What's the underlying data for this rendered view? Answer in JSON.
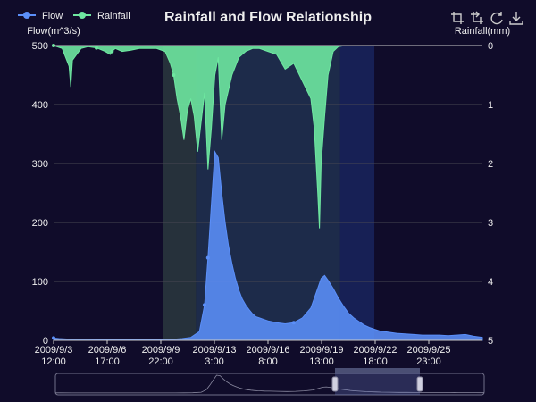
{
  "chart_data": {
    "type": "area",
    "title": "Rainfall and Flow Relationship",
    "legend": {
      "placement": "top-left",
      "items": [
        {
          "name": "Flow",
          "color": "#5b8ff9"
        },
        {
          "name": "Rainfall",
          "color": "#6ee7a0"
        }
      ]
    },
    "x_tick_labels": [
      [
        "2009/9/3",
        "12:00"
      ],
      [
        "2009/9/6",
        "17:00"
      ],
      [
        "2009/9/9",
        "22:00"
      ],
      [
        "2009/9/13",
        "3:00"
      ],
      [
        "2009/9/16",
        "8:00"
      ],
      [
        "2009/9/19",
        "13:00"
      ],
      [
        "2009/9/22",
        "18:00"
      ],
      [
        "2009/9/25",
        "23:00"
      ]
    ],
    "y_left": {
      "name": "Flow(m^3/s)",
      "min": 0,
      "max": 500,
      "ticks": [
        0,
        100,
        200,
        300,
        400,
        500
      ]
    },
    "y_right": {
      "name": "Rainfall(mm)",
      "min": 0,
      "max": 5,
      "inverse": true,
      "ticks": [
        0,
        1,
        2,
        3,
        4,
        5
      ]
    },
    "x_range_days": [
      0,
      25
    ],
    "highlight_bands": [
      {
        "from": 6.4,
        "to": 8.3,
        "color": "rgba(56,80,72,0.55)"
      },
      {
        "from": 8.3,
        "to": 16.7,
        "color": "rgba(40,70,100,0.55)"
      },
      {
        "from": 16.7,
        "to": 18.7,
        "color": "rgba(30,50,120,0.55)"
      }
    ],
    "series": [
      {
        "name": "Flow",
        "color": "#5b8ff9",
        "x_days": [
          0.0,
          0.3,
          1.0,
          2.0,
          3.0,
          4.0,
          5.0,
          6.0,
          6.5,
          7.0,
          7.5,
          8.0,
          8.5,
          8.8,
          9.0,
          9.2,
          9.4,
          9.6,
          9.8,
          10.0,
          10.2,
          10.4,
          10.6,
          10.8,
          11.0,
          11.2,
          11.4,
          11.6,
          11.8,
          12.0,
          12.2,
          12.5,
          13.0,
          13.5,
          14.0,
          14.5,
          15.0,
          15.3,
          15.6,
          15.8,
          16.0,
          16.3,
          16.6,
          16.9,
          17.2,
          17.5,
          17.8,
          18.1,
          18.4,
          18.7,
          19.0,
          19.5,
          20.0,
          20.5,
          21.0,
          21.5,
          22.0,
          22.5,
          23.0,
          23.5,
          24.0,
          24.5,
          25.0
        ],
        "values": [
          4,
          3,
          2,
          2,
          1,
          1,
          1,
          1,
          2,
          2,
          3,
          5,
          15,
          60,
          140,
          230,
          320,
          310,
          250,
          200,
          160,
          130,
          105,
          85,
          70,
          60,
          52,
          45,
          40,
          38,
          36,
          33,
          30,
          28,
          30,
          38,
          55,
          80,
          105,
          110,
          102,
          88,
          72,
          58,
          46,
          38,
          32,
          26,
          22,
          19,
          16,
          14,
          12,
          11,
          10,
          9,
          9,
          9,
          8,
          9,
          10,
          7,
          5
        ]
      },
      {
        "name": "Rainfall",
        "color": "#6ee7a0",
        "x_days": [
          0.0,
          0.5,
          0.9,
          1.0,
          1.1,
          1.6,
          2.0,
          2.5,
          3.0,
          3.3,
          3.4,
          3.6,
          4.0,
          4.5,
          5.0,
          5.5,
          6.0,
          6.5,
          6.8,
          7.0,
          7.2,
          7.4,
          7.6,
          7.8,
          8.0,
          8.2,
          8.4,
          8.6,
          8.8,
          9.0,
          9.2,
          9.4,
          9.6,
          9.8,
          10.0,
          10.4,
          10.8,
          11.2,
          11.6,
          12.0,
          12.5,
          13.0,
          13.5,
          14.0,
          14.5,
          15.0,
          15.2,
          15.4,
          15.5,
          15.6,
          15.8,
          16.0,
          16.3,
          16.6,
          17.0,
          17.5,
          18.0,
          19.0,
          20.0,
          21.0,
          22.0,
          23.0,
          24.0,
          25.0
        ],
        "values": [
          0.0,
          0.05,
          0.35,
          0.7,
          0.25,
          0.05,
          0.02,
          0.04,
          0.1,
          0.15,
          0.1,
          0.05,
          0.1,
          0.08,
          0.05,
          0.05,
          0.05,
          0.1,
          0.3,
          0.5,
          0.9,
          1.2,
          1.6,
          1.1,
          0.9,
          1.2,
          1.8,
          1.3,
          0.8,
          2.1,
          1.4,
          0.5,
          0.2,
          1.6,
          1.0,
          0.5,
          0.2,
          0.1,
          0.05,
          0.05,
          0.1,
          0.15,
          0.4,
          0.3,
          0.6,
          0.9,
          1.4,
          2.5,
          3.1,
          2.0,
          1.2,
          0.5,
          0.1,
          0.02,
          0.0,
          0.0,
          0.0,
          0.0,
          0.0,
          0.0,
          0.0,
          0.0,
          0.0,
          0.0
        ]
      }
    ],
    "grid": true
  },
  "toolbox": [
    "crop-zoom-icon",
    "zoom-reset-icon",
    "restore-icon",
    "download-icon"
  ],
  "colors": {
    "background": "#100c2a",
    "axis": "#cccccc",
    "grid": "#484753",
    "text": "#eeeeee"
  }
}
